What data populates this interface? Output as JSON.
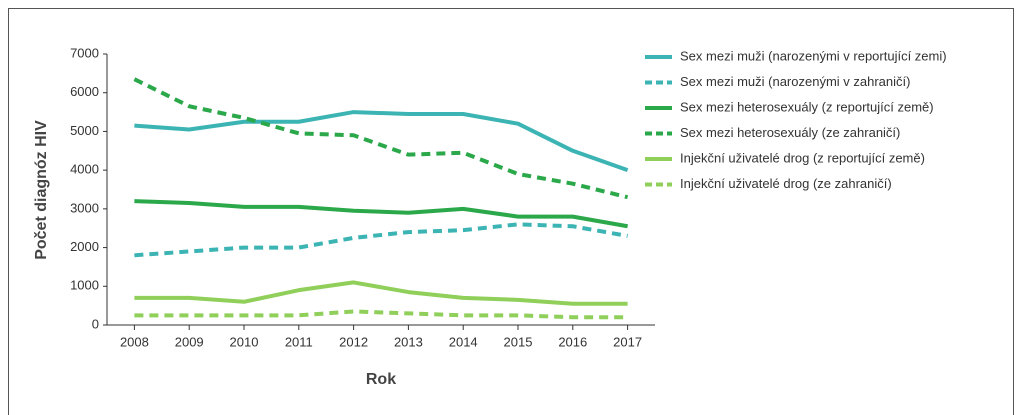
{
  "chart_data": {
    "type": "line",
    "ylabel": "Počet diagnóz HIV",
    "xlabel": "Rok",
    "categories": [
      "2008",
      "2009",
      "2010",
      "2011",
      "2012",
      "2013",
      "2014",
      "2015",
      "2016",
      "2017"
    ],
    "ylim": [
      0,
      7000
    ],
    "yticks": [
      0,
      1000,
      2000,
      3000,
      4000,
      5000,
      6000,
      7000
    ],
    "series": [
      {
        "name": "Sex mezi muži (narozenými v reportující zemi)",
        "color": "#3cb4b4",
        "dash": false,
        "values": [
          5150,
          5050,
          5250,
          5250,
          5500,
          5450,
          5450,
          5200,
          4500,
          4000
        ]
      },
      {
        "name": "Sex mezi muži (narozenými v zahraničí)",
        "color": "#3cb4b4",
        "dash": true,
        "values": [
          1800,
          1900,
          2000,
          2000,
          2250,
          2400,
          2450,
          2600,
          2550,
          2300
        ]
      },
      {
        "name": "Sex mezi heterosexuály (z reportující země)",
        "color": "#2aa84a",
        "dash": false,
        "values": [
          3200,
          3150,
          3050,
          3050,
          2950,
          2900,
          3000,
          2800,
          2800,
          2550
        ]
      },
      {
        "name": "Sex mezi heterosexuály (ze zahraničí)",
        "color": "#2aa84a",
        "dash": true,
        "values": [
          6350,
          5650,
          5350,
          4950,
          4900,
          4400,
          4450,
          3900,
          3650,
          3300
        ]
      },
      {
        "name": "Injekční uživatelé drog (z reportující země)",
        "color": "#8fcf5a",
        "dash": false,
        "values": [
          700,
          700,
          600,
          900,
          1100,
          850,
          700,
          650,
          550,
          550
        ]
      },
      {
        "name": "Injekční uživatelé drog (ze zahraničí)",
        "color": "#8fcf5a",
        "dash": true,
        "values": [
          250,
          250,
          250,
          250,
          350,
          300,
          250,
          250,
          200,
          200
        ]
      }
    ]
  }
}
